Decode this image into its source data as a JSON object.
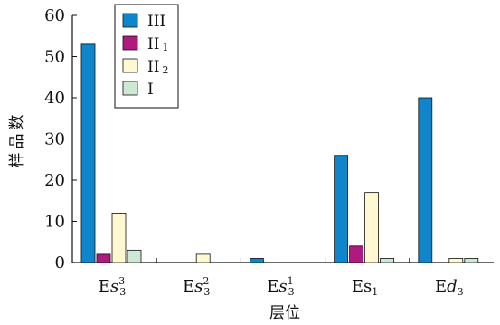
{
  "chart_data": {
    "type": "bar",
    "xlabel": "层位",
    "ylabel": "样品数",
    "ylim": [
      0,
      60
    ],
    "yticks": [
      0,
      10,
      20,
      30,
      40,
      50,
      60
    ],
    "categories": [
      {
        "base": "Es",
        "var": "s",
        "sub": "3",
        "sup": "3",
        "label": "Es33"
      },
      {
        "base": "Es",
        "var": "s",
        "sub": "3",
        "sup": "2",
        "label": "Es32"
      },
      {
        "base": "Es",
        "var": "s",
        "sub": "3",
        "sup": "1",
        "label": "Es31"
      },
      {
        "base": "Es",
        "var": "",
        "sub": "1",
        "sup": "",
        "label": "Es1"
      },
      {
        "base": "Ed",
        "var": "d",
        "sub": "3",
        "sup": "",
        "label": "Ed3"
      }
    ],
    "series": [
      {
        "name": "III",
        "name_main": "III",
        "name_sub": "",
        "color": "#0f86cc",
        "values": [
          53,
          0,
          1,
          26,
          40
        ]
      },
      {
        "name": "II1",
        "name_main": "II",
        "name_sub": "1",
        "color": "#b0197e",
        "values": [
          2,
          0,
          0,
          4,
          0
        ]
      },
      {
        "name": "II2",
        "name_main": "II",
        "name_sub": "2",
        "color": "#fff8d0",
        "values": [
          12,
          2,
          0,
          17,
          1
        ]
      },
      {
        "name": "I",
        "name_main": "I",
        "name_sub": "",
        "color": "#cde9d6",
        "values": [
          3,
          0,
          0,
          1,
          1
        ]
      }
    ],
    "legend_position": "top-left",
    "grid": false
  }
}
